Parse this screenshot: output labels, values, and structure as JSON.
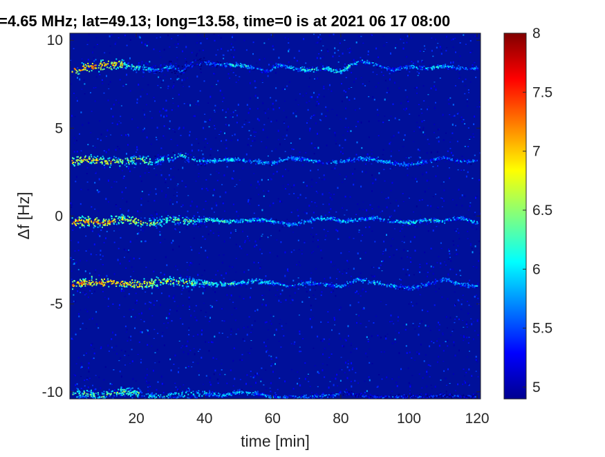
{
  "chart_data": {
    "type": "heatmap",
    "title": "=4.65 MHz;  lat=49.13; long=13.58, time=0 is at 2021 06 17 08:00",
    "xlabel": "time [min]",
    "ylabel": "Δf [Hz]",
    "xlim": [
      0.5,
      121
    ],
    "ylim": [
      -10.4,
      10.4
    ],
    "xticks": [
      20,
      40,
      60,
      80,
      100,
      120
    ],
    "xtick_labels": [
      "20",
      "40",
      "60",
      "80",
      "100",
      "120"
    ],
    "yticks": [
      10,
      5,
      0,
      -5,
      -10
    ],
    "ytick_labels": [
      "10",
      "5",
      "0",
      "-5",
      "-10"
    ],
    "colormap": "jet",
    "clim": [
      4.9,
      8
    ],
    "colorbar_ticks": [
      8,
      7.5,
      7,
      6.5,
      6,
      5.5,
      5
    ],
    "colorbar_tick_labels": [
      "8",
      "7.5",
      "7",
      "6.5",
      "6",
      "5.5",
      "5"
    ],
    "traces": [
      {
        "points": [
          [
            1,
            8.3
          ],
          [
            5,
            8.4
          ],
          [
            10,
            8.6
          ],
          [
            15,
            8.6
          ],
          [
            20,
            8.5
          ],
          [
            25,
            8.3
          ],
          [
            30,
            8.5
          ],
          [
            33,
            8.2
          ],
          [
            35,
            8.6
          ],
          [
            40,
            8.7
          ],
          [
            45,
            8.6
          ],
          [
            50,
            8.6
          ],
          [
            55,
            8.4
          ],
          [
            58,
            8.2
          ],
          [
            62,
            8.6
          ],
          [
            65,
            8.4
          ],
          [
            70,
            8.3
          ],
          [
            75,
            8.4
          ],
          [
            80,
            8.2
          ],
          [
            83,
            8.6
          ],
          [
            86,
            8.8
          ],
          [
            90,
            8.6
          ],
          [
            95,
            8.3
          ],
          [
            100,
            8.5
          ],
          [
            105,
            8.4
          ],
          [
            110,
            8.5
          ],
          [
            115,
            8.4
          ],
          [
            120,
            8.4
          ]
        ],
        "intensity": [
          7.6,
          7.4,
          6.6,
          6.2,
          6.0,
          5.9,
          6.4,
          6.0,
          6.2,
          6.4,
          6.5,
          6.2,
          6.0,
          6.1,
          6.3,
          6.1
        ]
      },
      {
        "points": [
          [
            1,
            3.1
          ],
          [
            5,
            3.2
          ],
          [
            10,
            3.1
          ],
          [
            15,
            3.1
          ],
          [
            20,
            3.2
          ],
          [
            25,
            3.1
          ],
          [
            30,
            3.3
          ],
          [
            33,
            3.5
          ],
          [
            36,
            3.2
          ],
          [
            40,
            3.1
          ],
          [
            45,
            3.2
          ],
          [
            50,
            3.2
          ],
          [
            55,
            3.1
          ],
          [
            60,
            3.0
          ],
          [
            65,
            3.3
          ],
          [
            70,
            3.2
          ],
          [
            75,
            3.0
          ],
          [
            80,
            3.1
          ],
          [
            85,
            3.3
          ],
          [
            90,
            3.2
          ],
          [
            95,
            3.0
          ],
          [
            100,
            2.9
          ],
          [
            105,
            3.1
          ],
          [
            110,
            3.3
          ],
          [
            115,
            3.1
          ],
          [
            120,
            3.1
          ]
        ],
        "intensity": [
          7.3,
          7.0,
          6.4,
          6.3,
          6.2,
          6.1,
          6.0,
          6.2,
          6.1,
          6.0
        ]
      },
      {
        "points": [
          [
            1,
            -0.3
          ],
          [
            5,
            -0.3
          ],
          [
            10,
            -0.4
          ],
          [
            15,
            -0.2
          ],
          [
            20,
            -0.3
          ],
          [
            25,
            -0.4
          ],
          [
            30,
            -0.2
          ],
          [
            35,
            -0.3
          ],
          [
            40,
            -0.2
          ],
          [
            45,
            -0.3
          ],
          [
            50,
            -0.3
          ],
          [
            55,
            -0.2
          ],
          [
            60,
            -0.3
          ],
          [
            65,
            -0.5
          ],
          [
            70,
            -0.3
          ],
          [
            75,
            -0.1
          ],
          [
            80,
            -0.3
          ],
          [
            85,
            -0.2
          ],
          [
            90,
            -0.1
          ],
          [
            95,
            -0.3
          ],
          [
            100,
            -0.4
          ],
          [
            105,
            -0.2
          ],
          [
            110,
            -0.3
          ],
          [
            115,
            -0.1
          ],
          [
            120,
            -0.4
          ]
        ],
        "intensity": [
          7.5,
          7.2,
          6.8,
          6.5,
          6.3,
          6.2,
          6.3,
          6.1,
          6.4,
          6.2
        ]
      },
      {
        "points": [
          [
            1,
            -3.9
          ],
          [
            5,
            -3.8
          ],
          [
            10,
            -3.8
          ],
          [
            15,
            -3.8
          ],
          [
            20,
            -3.9
          ],
          [
            25,
            -3.8
          ],
          [
            30,
            -3.7
          ],
          [
            35,
            -3.8
          ],
          [
            40,
            -3.8
          ],
          [
            45,
            -3.9
          ],
          [
            50,
            -3.8
          ],
          [
            55,
            -3.7
          ],
          [
            60,
            -3.8
          ],
          [
            65,
            -4.0
          ],
          [
            70,
            -3.8
          ],
          [
            75,
            -3.9
          ],
          [
            80,
            -4.0
          ],
          [
            85,
            -3.6
          ],
          [
            90,
            -3.8
          ],
          [
            95,
            -4.0
          ],
          [
            100,
            -4.1
          ],
          [
            105,
            -3.9
          ],
          [
            110,
            -3.6
          ],
          [
            115,
            -3.9
          ],
          [
            120,
            -4.0
          ]
        ],
        "intensity": [
          7.6,
          7.4,
          7.0,
          6.6,
          6.4,
          6.2,
          6.1,
          6.3,
          6.0,
          6.1
        ]
      },
      {
        "points": [
          [
            1,
            -10.2
          ],
          [
            5,
            -10.1
          ],
          [
            10,
            -10.2
          ],
          [
            15,
            -10.0
          ],
          [
            20,
            -10.1
          ],
          [
            25,
            -10.3
          ],
          [
            30,
            -10.2
          ],
          [
            40,
            -10.1
          ],
          [
            45,
            -10.2
          ],
          [
            50,
            -10.0
          ],
          [
            55,
            -10.1
          ],
          [
            60,
            -10.3
          ],
          [
            70,
            -10.3
          ],
          [
            75,
            -10.2
          ],
          [
            78,
            -10.2
          ],
          [
            80,
            -10.0
          ],
          [
            85,
            -10.2
          ],
          [
            90,
            -10.3
          ],
          [
            100,
            -10.3
          ],
          [
            110,
            -10.2
          ],
          [
            120,
            -10.3
          ]
        ],
        "intensity": [
          6.8,
          6.4,
          6.2,
          6.0,
          5.8,
          5.7
        ]
      }
    ]
  }
}
